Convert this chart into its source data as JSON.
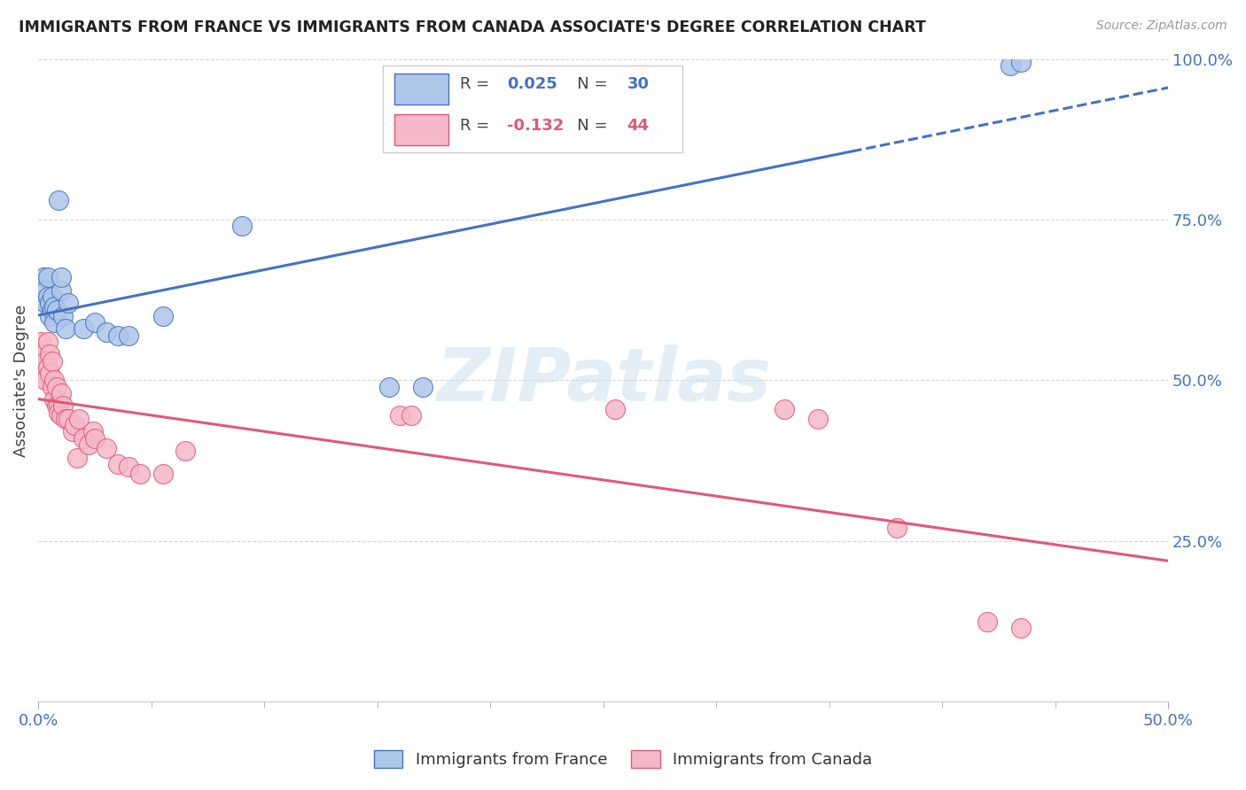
{
  "title": "IMMIGRANTS FROM FRANCE VS IMMIGRANTS FROM CANADA ASSOCIATE'S DEGREE CORRELATION CHART",
  "source": "Source: ZipAtlas.com",
  "ylabel": "Associate's Degree",
  "xlim": [
    0.0,
    0.5
  ],
  "ylim": [
    0.0,
    1.0
  ],
  "xtick_positions": [
    0.0,
    0.5
  ],
  "xtick_labels": [
    "0.0%",
    "50.0%"
  ],
  "ytick_positions": [
    0.25,
    0.5,
    0.75,
    1.0
  ],
  "yticklabels_right": [
    "25.0%",
    "50.0%",
    "75.0%",
    "100.0%"
  ],
  "legend_r_france": "0.025",
  "legend_n_france": "30",
  "legend_r_canada": "-0.132",
  "legend_n_canada": "44",
  "france_color": "#aec6e8",
  "canada_color": "#f5b8c8",
  "france_line_color": "#4472c4",
  "canada_line_color": "#e05878",
  "watermark": "ZIPatlas",
  "france_x": [
    0.001,
    0.002,
    0.003,
    0.003,
    0.004,
    0.004,
    0.005,
    0.005,
    0.006,
    0.006,
    0.007,
    0.007,
    0.008,
    0.009,
    0.01,
    0.01,
    0.011,
    0.012,
    0.013,
    0.02,
    0.025,
    0.03,
    0.035,
    0.04,
    0.055,
    0.09,
    0.155,
    0.17,
    0.43,
    0.435
  ],
  "france_y": [
    0.625,
    0.66,
    0.62,
    0.64,
    0.63,
    0.66,
    0.6,
    0.62,
    0.61,
    0.63,
    0.59,
    0.615,
    0.61,
    0.78,
    0.64,
    0.66,
    0.6,
    0.58,
    0.62,
    0.58,
    0.59,
    0.575,
    0.57,
    0.57,
    0.6,
    0.74,
    0.49,
    0.49,
    0.99,
    0.995
  ],
  "canada_x": [
    0.001,
    0.002,
    0.002,
    0.003,
    0.003,
    0.004,
    0.004,
    0.005,
    0.005,
    0.006,
    0.006,
    0.007,
    0.007,
    0.008,
    0.008,
    0.009,
    0.009,
    0.01,
    0.01,
    0.011,
    0.012,
    0.013,
    0.015,
    0.016,
    0.017,
    0.018,
    0.02,
    0.022,
    0.024,
    0.025,
    0.03,
    0.035,
    0.04,
    0.045,
    0.055,
    0.065,
    0.16,
    0.165,
    0.255,
    0.33,
    0.345,
    0.38,
    0.42,
    0.435
  ],
  "canada_y": [
    0.56,
    0.54,
    0.51,
    0.53,
    0.5,
    0.56,
    0.52,
    0.54,
    0.51,
    0.53,
    0.49,
    0.5,
    0.47,
    0.46,
    0.49,
    0.46,
    0.45,
    0.445,
    0.48,
    0.46,
    0.44,
    0.44,
    0.42,
    0.43,
    0.38,
    0.44,
    0.41,
    0.4,
    0.42,
    0.41,
    0.395,
    0.37,
    0.365,
    0.355,
    0.355,
    0.39,
    0.445,
    0.445,
    0.455,
    0.455,
    0.44,
    0.27,
    0.125,
    0.115
  ],
  "background_color": "#ffffff",
  "grid_color": "#cccccc"
}
